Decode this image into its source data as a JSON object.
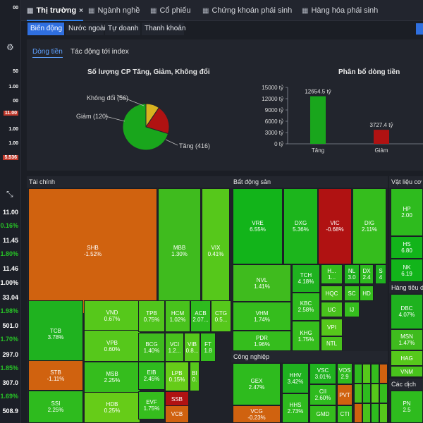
{
  "left_sidebar": {
    "values": [
      "00",
      "1.00",
      "50",
      "00",
      "1.00",
      "1.00",
      "11.00",
      "1.00",
      "5.536"
    ],
    "badges": [
      "11.00",
      "5.536"
    ],
    "gear_icon": "gear-icon",
    "expand_icon": "expand-icon",
    "big_values": [
      "11.00",
      "0.16%",
      "11.45",
      "1.80%",
      "11.46",
      "1.00%",
      "33.04",
      "1.98%",
      "501.0",
      "1.70%",
      "297.0",
      "1.85%",
      "307.0",
      "1.69%",
      "508.9"
    ],
    "colors": {
      "up": "#27c427",
      "down": "#e03b3b",
      "white": "#ffffff"
    }
  },
  "tabs": [
    {
      "label": "Thị trường",
      "icon": "grid-icon",
      "active": true,
      "close": "×"
    },
    {
      "label": "Ngành nghề",
      "icon": "grid-icon"
    },
    {
      "label": "Cổ phiếu",
      "icon": "grid-icon"
    },
    {
      "label": "Chứng khoán phái sinh",
      "icon": "grid-icon"
    },
    {
      "label": "Hàng hóa phái sinh",
      "icon": "grid-icon"
    }
  ],
  "subtabs": [
    "Biến động",
    "Nước ngoài",
    "Tự doanh",
    "Thanh khoản"
  ],
  "panel": {
    "tabs": [
      "Dòng tiền",
      "Tác động tới index"
    ],
    "pie": {
      "title": "Số lượng CP Tăng, Giảm, Không đổi",
      "labels": [
        "Không đổi (56)",
        "Giảm (120)",
        "Tăng (416)"
      ],
      "values": [
        56,
        120,
        416
      ],
      "colors": [
        "#d8b21f",
        "#b01212",
        "#19a61c"
      ]
    },
    "bars": {
      "title": "Phân bổ dòng tiền",
      "yticks": [
        "15000 tỷ",
        "12000 tỷ",
        "9000 tỷ",
        "6000 tỷ",
        "3000 tỷ",
        "0 tỷ"
      ],
      "categories": [
        "Tăng",
        "Giảm"
      ],
      "values": [
        12654.5,
        3727.4
      ],
      "value_labels": [
        "12654.5 tỷ",
        "3727.4 tỷ"
      ],
      "ylim": [
        0,
        15000
      ],
      "colors": [
        "#19a61c",
        "#b01212"
      ]
    }
  },
  "chart_data": [
    {
      "type": "pie",
      "title": "Số lượng CP Tăng, Giảm, Không đổi",
      "categories": [
        "Tăng",
        "Giảm",
        "Không đổi"
      ],
      "values": [
        416,
        120,
        56
      ]
    },
    {
      "type": "bar",
      "title": "Phân bổ dòng tiền",
      "categories": [
        "Tăng",
        "Giảm"
      ],
      "values": [
        12654.5,
        3727.4
      ],
      "ylim": [
        0,
        15000
      ]
    }
  ],
  "treemap": {
    "sections": [
      {
        "title": "Tài chính",
        "cells": [
          {
            "s": "SHB",
            "p": "-1.52%",
            "c": "#d0620f"
          },
          {
            "s": "MBB",
            "p": "1.30%",
            "c": "#3fbb1e"
          },
          {
            "s": "VIX",
            "p": "0.41%",
            "c": "#56c81b"
          },
          {
            "s": "TCB",
            "p": "3.78%",
            "c": "#1fb21f"
          },
          {
            "s": "STB",
            "p": "-1.11%",
            "c": "#d0620f"
          },
          {
            "s": "SSI",
            "p": "2.25%",
            "c": "#2ebb1e"
          },
          {
            "s": "VND",
            "p": "0.67%",
            "c": "#56c81b"
          },
          {
            "s": "VPB",
            "p": "0.60%",
            "c": "#56c81b"
          },
          {
            "s": "MSB",
            "p": "2.25%",
            "c": "#35bd1d"
          },
          {
            "s": "HDB",
            "p": "0.25%",
            "c": "#66cc18"
          },
          {
            "s": "TPB",
            "p": "0.75%",
            "c": "#50c51c"
          },
          {
            "s": "HCM",
            "p": "1.02%",
            "c": "#48c21c"
          },
          {
            "s": "ACB",
            "p": "2.07...",
            "c": "#2ebb1e"
          },
          {
            "s": "CTG",
            "p": "0.5...",
            "c": "#56c81b"
          },
          {
            "s": "BCG",
            "p": "1.40%",
            "c": "#3fbb1e"
          },
          {
            "s": "EIB",
            "p": "2.45%",
            "c": "#2ebb1e"
          },
          {
            "s": "EVF",
            "p": "1.75%",
            "c": "#35bd1d"
          },
          {
            "s": "VCI",
            "p": "1.2...",
            "c": "#48c21c"
          },
          {
            "s": "VIB",
            "p": "0.8...",
            "c": "#56c81b"
          },
          {
            "s": "FT",
            "p": "1.8",
            "c": "#35bd1d"
          },
          {
            "s": "LPB",
            "p": "0.15%",
            "c": "#66cc18"
          },
          {
            "s": "BI",
            "p": "0.",
            "c": "#56c81b"
          },
          {
            "s": "SSB",
            "p": "",
            "c": "#b01212"
          },
          {
            "s": "VCB",
            "p": "",
            "c": "#d0620f"
          }
        ]
      },
      {
        "title": "Bất động sản",
        "cells": [
          {
            "s": "VRE",
            "p": "6.55%",
            "c": "#12b41a"
          },
          {
            "s": "DXG",
            "p": "5.36%",
            "c": "#1cb51c"
          },
          {
            "s": "VIC",
            "p": "-0.68%",
            "c": "#b01212"
          },
          {
            "s": "DIG",
            "p": "2.11%",
            "c": "#35bd1d"
          },
          {
            "s": "NVL",
            "p": "1.41%",
            "c": "#3fbb1e"
          },
          {
            "s": "VHM",
            "p": "1.74%",
            "c": "#35bd1d"
          },
          {
            "s": "PDR",
            "p": "1.96%",
            "c": "#35bd1d"
          },
          {
            "s": "TCH",
            "p": "4.18%",
            "c": "#1fb21f"
          },
          {
            "s": "KBC",
            "p": "2.58%",
            "c": "#2ebb1e"
          },
          {
            "s": "KHG",
            "p": "1.75%",
            "c": "#35bd1d"
          },
          {
            "s": "H...",
            "p": "1...",
            "c": "#35bd1d"
          },
          {
            "s": "NL",
            "p": "3.0",
            "c": "#1fb21f"
          },
          {
            "s": "DX",
            "p": "2.4",
            "c": "#2ebb1e"
          },
          {
            "s": "S",
            "p": "4",
            "c": "#1fb21f"
          },
          {
            "s": "HQC",
            "p": "",
            "c": "#48c21c"
          },
          {
            "s": "SC",
            "p": "",
            "c": "#35bd1d"
          },
          {
            "s": "HD",
            "p": "",
            "c": "#35bd1d"
          },
          {
            "s": "UC",
            "p": "",
            "c": "#48c21c"
          },
          {
            "s": "IJ",
            "p": "",
            "c": "#35bd1d"
          },
          {
            "s": "VPI",
            "p": "",
            "c": "#56c81b"
          },
          {
            "s": "NTL",
            "p": "",
            "c": "#48c21c"
          }
        ]
      },
      {
        "title": "Công nghiệp",
        "cells": [
          {
            "s": "GEX",
            "p": "2.47%",
            "c": "#2ebb1e"
          },
          {
            "s": "VCG",
            "p": "-0.23%",
            "c": "#d0620f"
          },
          {
            "s": "HHV",
            "p": "3.42%",
            "c": "#1fb21f"
          },
          {
            "s": "HHS",
            "p": "2.73%",
            "c": "#2ebb1e"
          },
          {
            "s": "VSC",
            "p": "3.01%",
            "c": "#1fb21f"
          },
          {
            "s": "CII",
            "p": "2.60%",
            "c": "#2ebb1e"
          },
          {
            "s": "GMD",
            "p": "",
            "c": "#35bd1d"
          },
          {
            "s": "VOS",
            "p": "2.9",
            "c": "#2ebb1e"
          },
          {
            "s": "PVT",
            "p": "",
            "c": "#d0620f"
          },
          {
            "s": "CTI",
            "p": "",
            "c": "#35bd1d"
          }
        ]
      },
      {
        "title": "Vật liệu cơ b",
        "cells": [
          {
            "s": "HP",
            "p": "2.00",
            "c": "#2ebb1e"
          },
          {
            "s": "HS",
            "p": "6.80",
            "c": "#12b41a"
          },
          {
            "s": "NK",
            "p": "6.19",
            "c": "#12b41a"
          }
        ]
      },
      {
        "title": "Hàng tiêu dù",
        "cells": [
          {
            "s": "DBC",
            "p": "4.07%",
            "c": "#1fb21f"
          },
          {
            "s": "MSN",
            "p": "1.47%",
            "c": "#3fbb1e"
          },
          {
            "s": "HAG",
            "p": "",
            "c": "#56c81b"
          },
          {
            "s": "VNM",
            "p": "",
            "c": "#48c21c"
          }
        ]
      },
      {
        "title": "Các dịch",
        "cells": [
          {
            "s": "PN",
            "p": "2.5",
            "c": "#2ebb1e"
          }
        ]
      }
    ]
  }
}
